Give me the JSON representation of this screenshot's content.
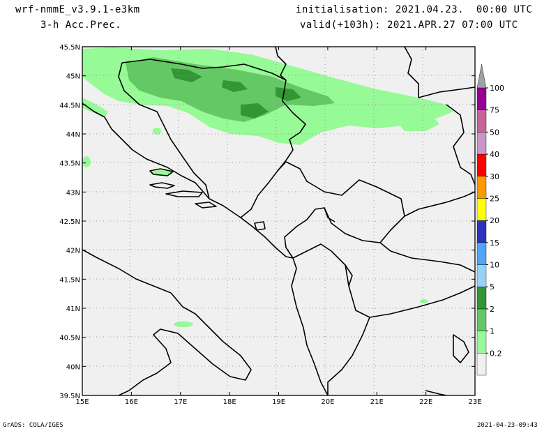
{
  "header": {
    "model": "wrf-nmmE_v3.9.1-e3km",
    "field": "3-h Acc.Prec.",
    "init": "initialisation: 2021.04.23.  00:00 UTC",
    "valid": "valid(+103h): 2021.APR.27 07:00 UTC"
  },
  "map": {
    "lon_labels": [
      "15E",
      "16E",
      "17E",
      "18E",
      "19E",
      "20E",
      "21E",
      "22E",
      "23E"
    ],
    "lat_labels": [
      "45.5N",
      "45N",
      "44.5N",
      "44N",
      "43.5N",
      "43N",
      "42.5N",
      "42N",
      "41.5N",
      "41N",
      "40.5N",
      "40N",
      "39.5N"
    ],
    "grid": true
  },
  "legend": {
    "levels": [
      "0.2",
      "1",
      "2",
      "5",
      "10",
      "15",
      "20",
      "25",
      "30",
      "40",
      "50",
      "75",
      "100"
    ],
    "colors": [
      "#f0f0f0",
      "#96fa96",
      "#64c864",
      "#329632",
      "#96d2fa",
      "#50a5f5",
      "#2d32be",
      "#ffff00",
      "#ff9900",
      "#ff0000",
      "#c896c8",
      "#c86496",
      "#960096",
      "#a0a0a0"
    ]
  },
  "footer": {
    "left": "GrADS: COLA/IGES",
    "right": "2021-04-23-09:43"
  }
}
